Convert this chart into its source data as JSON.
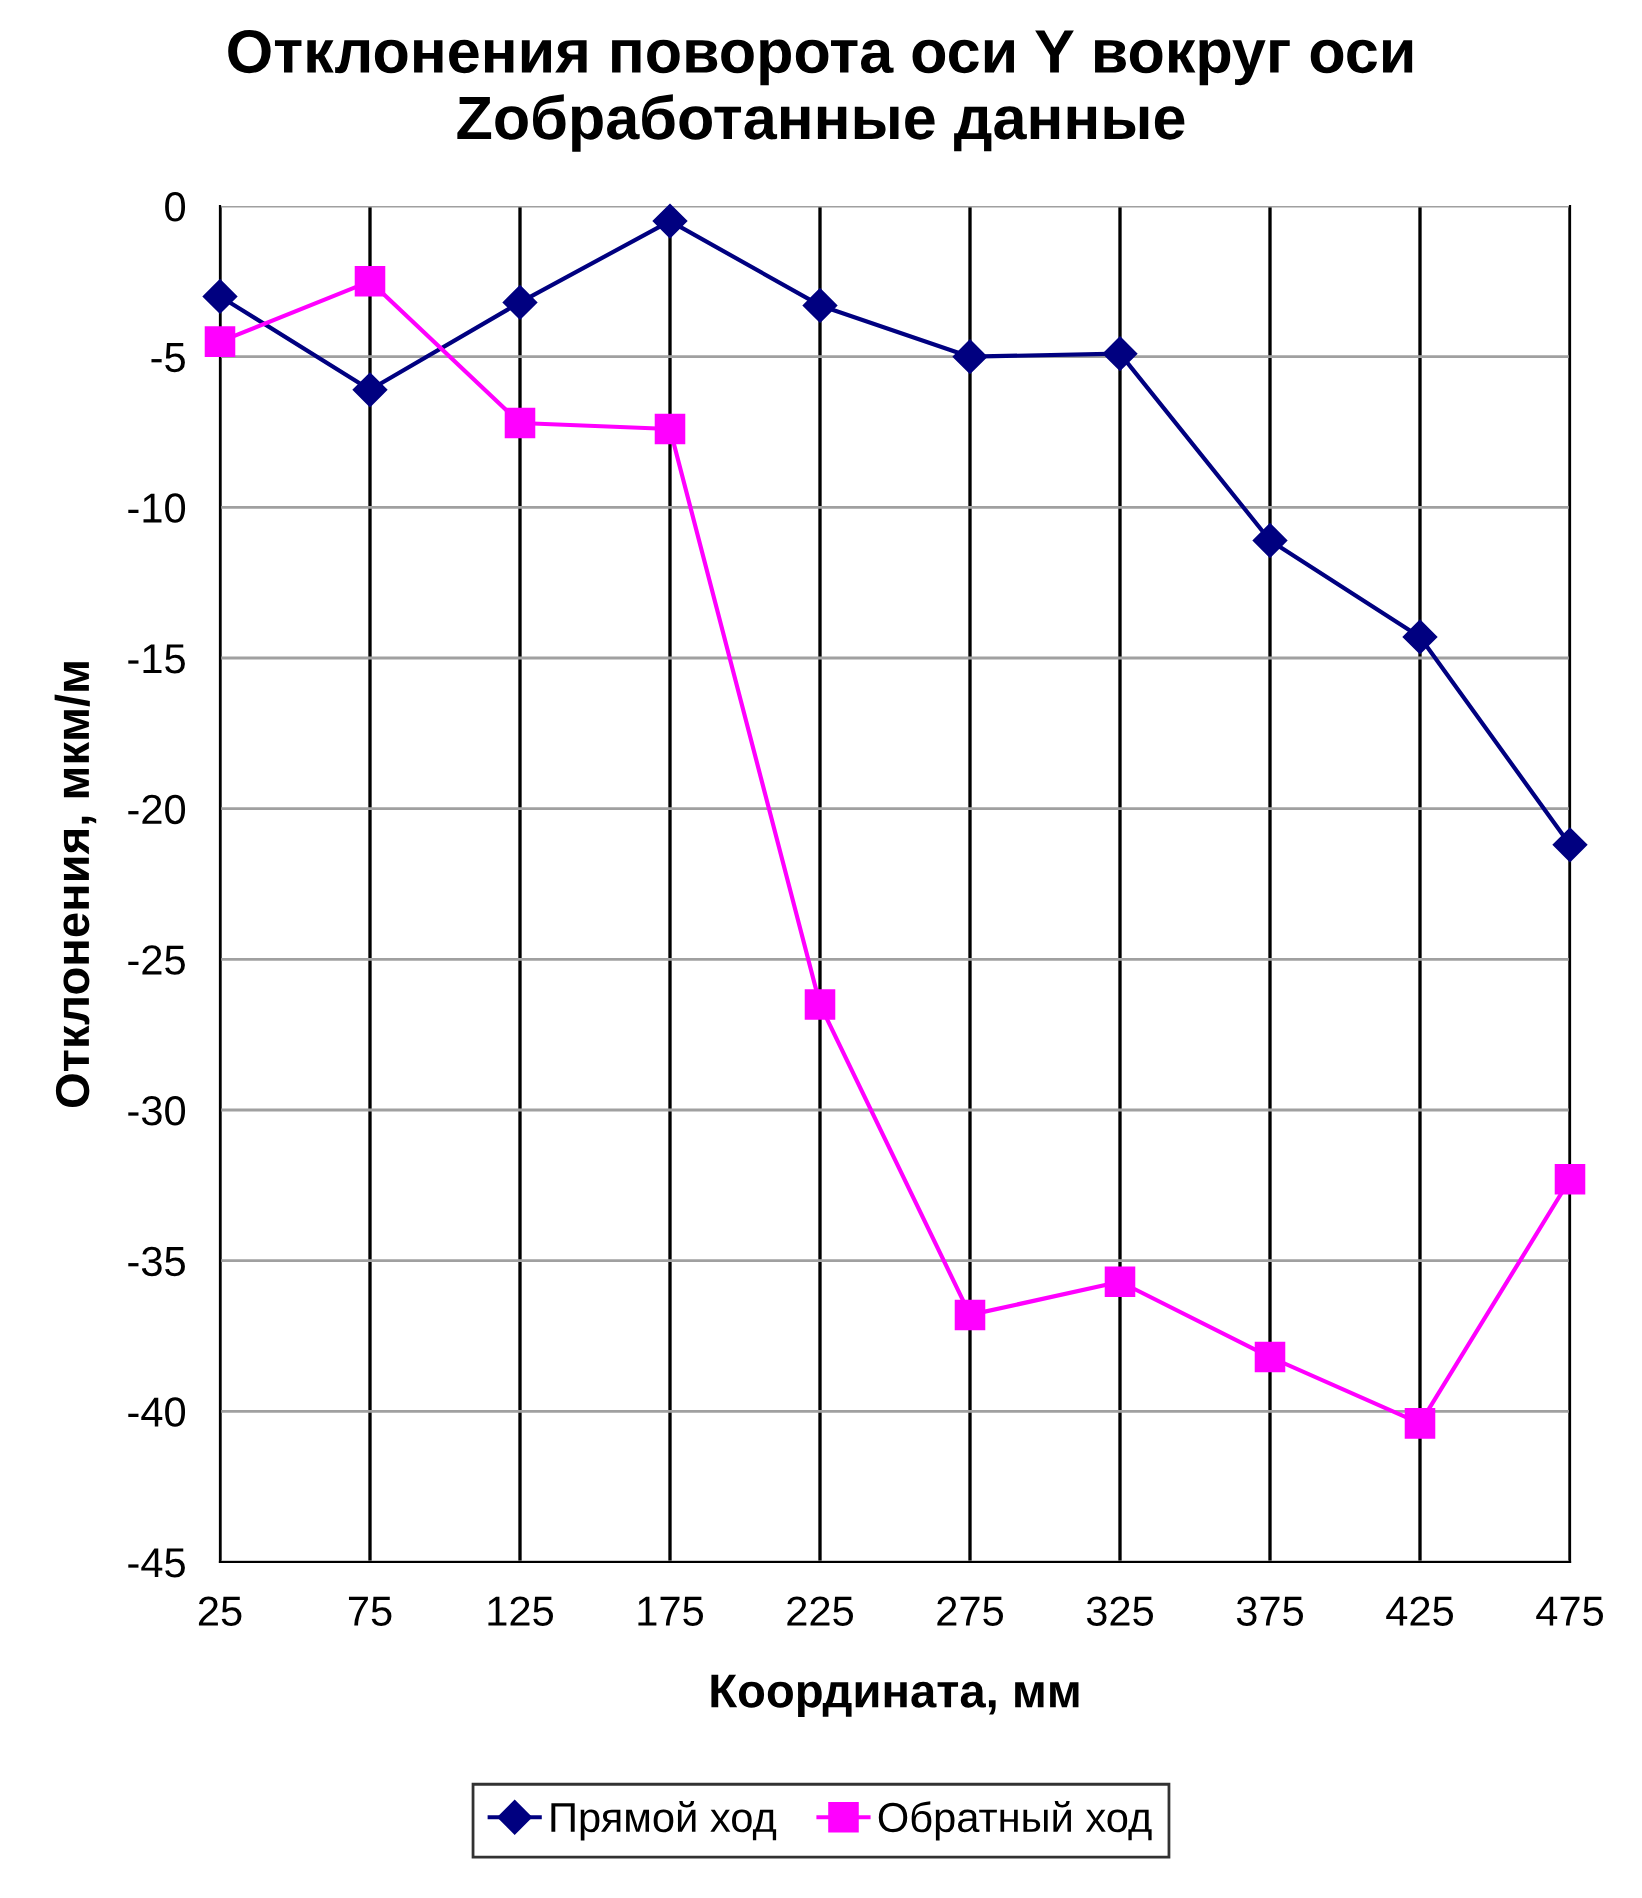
{
  "chart_data": {
    "type": "line",
    "title": "Отклонения поворота оси Y вокруг оси\nZобработанные данные",
    "xlabel": "Координата, мм",
    "ylabel": "Отклонения, мкм/м",
    "categories": [
      "25",
      "75",
      "125",
      "175",
      "225",
      "275",
      "325",
      "375",
      "425",
      "475"
    ],
    "series": [
      {
        "name": "Прямой ход",
        "color": "#000080",
        "marker": "diamond",
        "values": [
          -3.0,
          -6.1,
          -3.2,
          -0.5,
          -3.3,
          -5.0,
          -4.9,
          -11.1,
          -14.3,
          -21.2
        ]
      },
      {
        "name": "Обратный ход",
        "color": "#ff00ff",
        "marker": "square",
        "values": [
          -4.5,
          -2.5,
          -7.2,
          -7.4,
          -26.5,
          -36.8,
          -35.7,
          -38.2,
          -40.4,
          -32.3
        ]
      }
    ],
    "ylim": [
      -45,
      0
    ],
    "yticks": [
      -45,
      -40,
      -35,
      -30,
      -25,
      -20,
      -15,
      -10,
      -5,
      0
    ],
    "grid": true,
    "legend": "bottom"
  }
}
